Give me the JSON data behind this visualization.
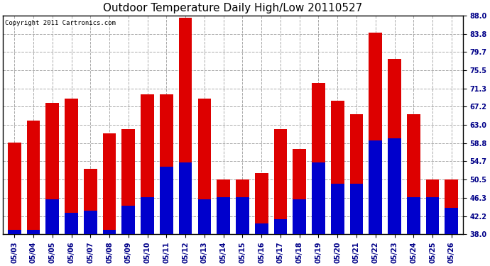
{
  "title": "Outdoor Temperature Daily High/Low 20110527",
  "copyright": "Copyright 2011 Cartronics.com",
  "dates": [
    "05/03",
    "05/04",
    "05/05",
    "05/06",
    "05/07",
    "05/08",
    "05/09",
    "05/10",
    "05/11",
    "05/12",
    "05/13",
    "05/14",
    "05/15",
    "05/16",
    "05/17",
    "05/18",
    "05/19",
    "05/20",
    "05/21",
    "05/22",
    "05/23",
    "05/24",
    "05/25",
    "05/26"
  ],
  "highs": [
    59.0,
    64.0,
    68.0,
    69.0,
    53.0,
    61.0,
    62.0,
    70.0,
    70.0,
    87.5,
    69.0,
    50.5,
    50.5,
    52.0,
    62.0,
    57.5,
    72.5,
    68.5,
    65.5,
    84.0,
    78.0,
    65.5,
    50.5,
    50.5
  ],
  "lows": [
    39.0,
    39.0,
    46.0,
    43.0,
    43.5,
    39.0,
    44.5,
    46.5,
    53.5,
    54.5,
    46.0,
    46.5,
    46.5,
    40.5,
    41.5,
    46.0,
    54.5,
    49.5,
    49.5,
    59.5,
    60.0,
    46.5,
    46.5,
    44.0
  ],
  "high_color": "#dd0000",
  "low_color": "#0000cc",
  "background_color": "#ffffff",
  "grid_color": "#aaaaaa",
  "ymin": 38.0,
  "ymax": 88.0,
  "yticks": [
    38.0,
    42.2,
    46.3,
    50.5,
    54.7,
    58.8,
    63.0,
    67.2,
    71.3,
    75.5,
    79.7,
    83.8,
    88.0
  ],
  "bar_width": 0.7,
  "title_fontsize": 11,
  "tick_fontsize": 7,
  "copyright_fontsize": 6.5
}
